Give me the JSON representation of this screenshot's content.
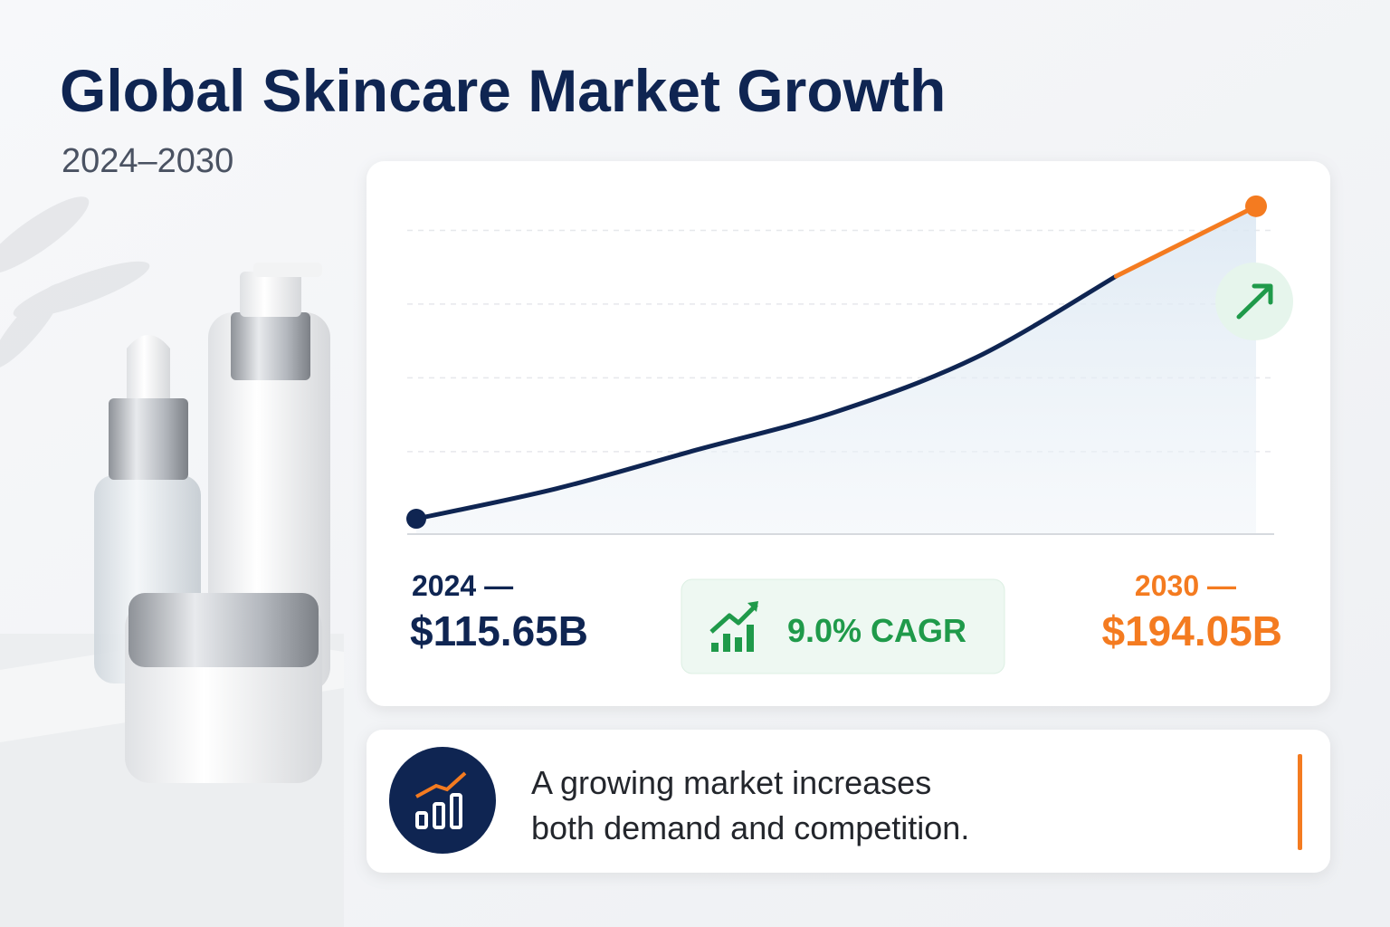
{
  "chart_data": {
    "type": "line",
    "title": "Global Skincare Market Growth",
    "subtitle": "2024–2030",
    "categories": [
      null,
      null,
      null,
      null,
      null,
      null,
      null
    ],
    "series": [
      {
        "color": "#0f2552",
        "values": [
          115.65,
          123.2,
          132.9,
          142.5,
          156.1,
          176.5,
          null
        ]
      },
      {
        "color": "#f47b20",
        "values": [
          null,
          null,
          null,
          null,
          null,
          176.5,
          194.05
        ]
      }
    ],
    "ylim": [
      111.8,
      198.1
    ],
    "yticks": [
      132.5,
      151,
      169.5,
      188
    ],
    "grid": true,
    "start_label": "2024 —",
    "start_value": "$115.65B",
    "end_label": "2030 —",
    "end_value": "$194.05B",
    "cagr": "9.0% CAGR",
    "takeaway": [
      "A growing market increases",
      "both demand and competition."
    ]
  }
}
